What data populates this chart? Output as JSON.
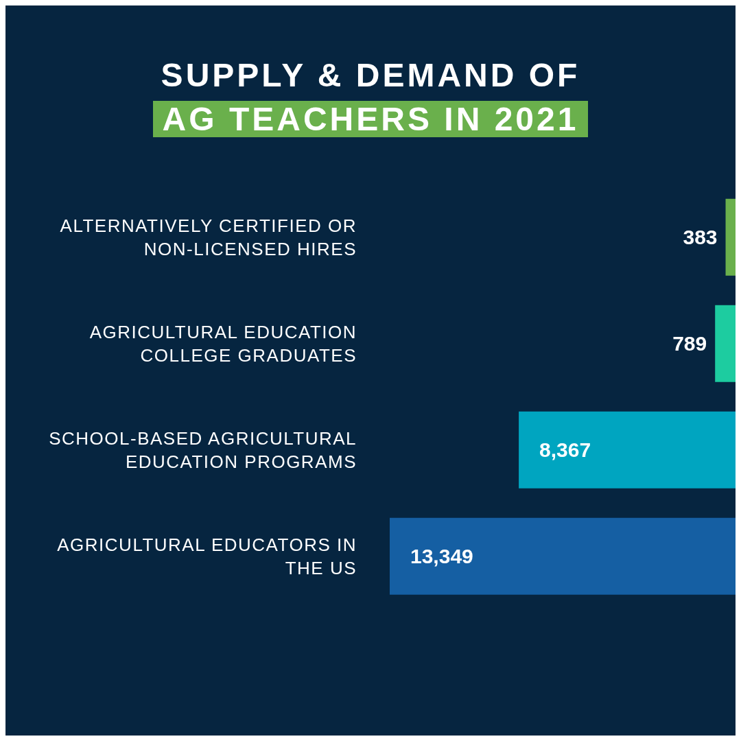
{
  "chart_data": {
    "type": "bar",
    "orientation": "horizontal",
    "title": "SUPPLY & DEMAND OF AG TEACHERS IN 2021",
    "categories": [
      "ALTERNATIVELY CERTIFIED OR NON-LICENSED HIRES",
      "AGRICULTURAL EDUCATION COLLEGE GRADUATES",
      "SCHOOL-BASED AGRICULTURAL EDUCATION PROGRAMS",
      "AGRICULTURAL EDUCATORS IN THE US"
    ],
    "values": [
      383,
      789,
      8367,
      13349
    ],
    "colors": [
      "#6ab04c",
      "#1dcca0",
      "#00a5c0",
      "#155fa3"
    ],
    "value_labels": [
      "383",
      "789",
      "8,367",
      "13,349"
    ]
  }
}
